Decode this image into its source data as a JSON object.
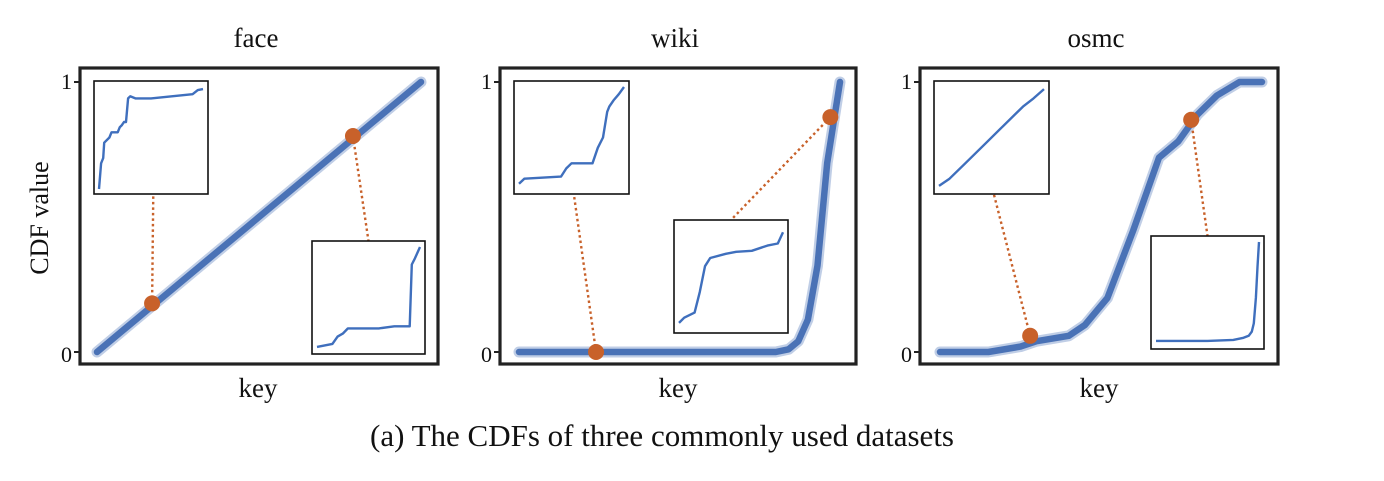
{
  "figure": {
    "caption": "(a) The CDFs of three commonly used datasets",
    "ylabel": "CDF value",
    "colors": {
      "curve": "#4a72b6",
      "marker": "#c8612a",
      "frame": "#222222",
      "inset_line": "#3f6fbd"
    }
  },
  "chart_data": [
    {
      "type": "line",
      "title": "face",
      "xlabel": "key",
      "ylabel": "CDF value",
      "ylim": [
        0,
        1
      ],
      "yticks": [
        "0",
        "1"
      ],
      "series": [
        {
          "name": "CDF",
          "x": [
            0,
            1
          ],
          "y": [
            0,
            1
          ]
        }
      ],
      "highlight_points": [
        {
          "x": 0.17,
          "y": 0.18
        },
        {
          "x": 0.79,
          "y": 0.8
        }
      ],
      "insets": [
        {
          "anchor": "top-left",
          "linked_point": 0,
          "x": [
            0,
            0.02,
            0.04,
            0.05,
            0.1,
            0.12,
            0.18,
            0.2,
            0.22,
            0.24,
            0.26,
            0.28,
            0.3,
            0.35,
            0.5,
            0.7,
            0.9,
            0.95,
            1.0
          ],
          "y": [
            0,
            0.25,
            0.3,
            0.45,
            0.5,
            0.55,
            0.55,
            0.6,
            0.62,
            0.65,
            0.65,
            0.88,
            0.9,
            0.88,
            0.88,
            0.9,
            0.92,
            0.96,
            0.97
          ]
        },
        {
          "anchor": "bottom-right",
          "linked_point": 1,
          "x": [
            0,
            0.15,
            0.2,
            0.25,
            0.3,
            0.4,
            0.6,
            0.75,
            0.9,
            0.92,
            0.95,
            1.0
          ],
          "y": [
            0.02,
            0.05,
            0.12,
            0.15,
            0.2,
            0.2,
            0.2,
            0.22,
            0.22,
            0.82,
            0.88,
            0.99
          ]
        }
      ]
    },
    {
      "type": "line",
      "title": "wiki",
      "xlabel": "key",
      "ylabel": "CDF value",
      "ylim": [
        0,
        1
      ],
      "yticks": [
        "0",
        "1"
      ],
      "series": [
        {
          "name": "CDF",
          "x": [
            0,
            0.5,
            0.8,
            0.84,
            0.87,
            0.9,
            0.93,
            0.96,
            1.0
          ],
          "y": [
            0,
            0,
            0,
            0.01,
            0.04,
            0.12,
            0.32,
            0.7,
            1.0
          ]
        }
      ],
      "highlight_points": [
        {
          "x": 0.24,
          "y": 0.0
        },
        {
          "x": 0.97,
          "y": 0.87
        }
      ],
      "insets": [
        {
          "anchor": "top-left",
          "linked_point": 0,
          "x": [
            0,
            0.05,
            0.4,
            0.45,
            0.5,
            0.7,
            0.75,
            0.8,
            0.84,
            0.86,
            0.9,
            0.95,
            1.0
          ],
          "y": [
            0.05,
            0.1,
            0.12,
            0.2,
            0.25,
            0.25,
            0.4,
            0.5,
            0.75,
            0.8,
            0.86,
            0.92,
            0.99
          ]
        },
        {
          "anchor": "middle",
          "linked_point": 1,
          "x": [
            0,
            0.05,
            0.15,
            0.2,
            0.25,
            0.3,
            0.45,
            0.55,
            0.7,
            0.85,
            0.95,
            1.0
          ],
          "y": [
            0.05,
            0.1,
            0.15,
            0.35,
            0.6,
            0.68,
            0.72,
            0.74,
            0.75,
            0.8,
            0.82,
            0.93
          ]
        }
      ]
    },
    {
      "type": "line",
      "title": "osmc",
      "xlabel": "key",
      "ylabel": "CDF value",
      "ylim": [
        0,
        1
      ],
      "yticks": [
        "0",
        "1"
      ],
      "series": [
        {
          "name": "CDF",
          "x": [
            0,
            0.15,
            0.25,
            0.3,
            0.4,
            0.45,
            0.52,
            0.6,
            0.68,
            0.74,
            0.8,
            0.86,
            0.93,
            1.0
          ],
          "y": [
            0,
            0,
            0.02,
            0.04,
            0.06,
            0.1,
            0.2,
            0.45,
            0.72,
            0.78,
            0.88,
            0.95,
            1.0,
            1.0
          ]
        }
      ],
      "highlight_points": [
        {
          "x": 0.28,
          "y": 0.06
        },
        {
          "x": 0.78,
          "y": 0.86
        }
      ],
      "insets": [
        {
          "anchor": "top-left",
          "linked_point": 0,
          "x": [
            0,
            0.1,
            0.25,
            0.45,
            0.6,
            0.8,
            0.9,
            1.0
          ],
          "y": [
            0.03,
            0.1,
            0.25,
            0.45,
            0.6,
            0.8,
            0.88,
            0.97
          ]
        },
        {
          "anchor": "bottom-right",
          "linked_point": 1,
          "x": [
            0,
            0.5,
            0.75,
            0.85,
            0.9,
            0.93,
            0.95,
            0.97,
            0.985,
            1.0
          ],
          "y": [
            0.03,
            0.03,
            0.04,
            0.06,
            0.08,
            0.12,
            0.2,
            0.45,
            0.75,
            0.99
          ]
        }
      ]
    }
  ]
}
